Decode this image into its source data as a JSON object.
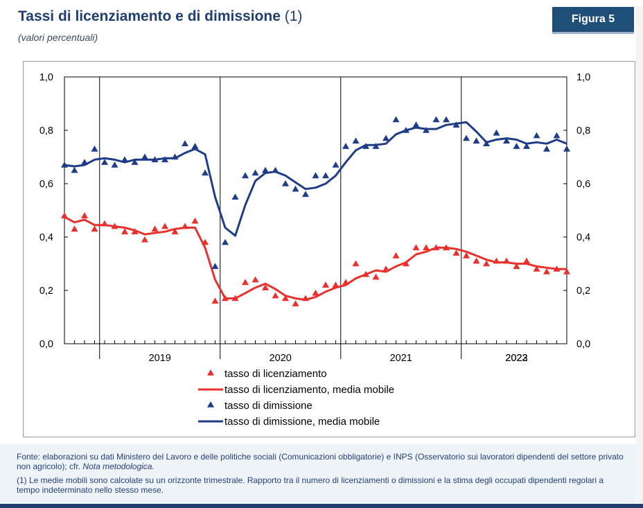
{
  "header": {
    "title": "Tassi di licenziamento e di dimissione",
    "title_note": "(1)",
    "subtitle": "(valori percentuali)",
    "figure_label": "Figura 5"
  },
  "colors": {
    "red": "#e8302d",
    "blue": "#1f3c88",
    "title": "#1f3f73"
  },
  "footer": {
    "source": "Fonte: elaborazioni su dati Ministero del Lavoro e delle politiche sociali (Comunicazioni obbligatorie) e INPS (Osservatorio sui lavoratori dipendenti del settore privato non agricolo); cfr.",
    "source_link": "Nota metodologica.",
    "note": "(1)  Le medie mobili sono calcolate su un orizzonte trimestrale. Rapporto tra il numero di licenziamenti o dimissioni e la stima degli occupati dipendenti regolari a tempo indeterminato nello stesso mese."
  },
  "chart_data": {
    "type": "line",
    "y_ticks": [
      "0,0",
      "0,2",
      "0,4",
      "0,6",
      "0,8",
      "1,0"
    ],
    "ylim": [
      0,
      1
    ],
    "year_labels": [
      "2019",
      "2020",
      "2021",
      "2022",
      "2023"
    ],
    "x_start": "2018-09",
    "months": 51,
    "grid": "vertical year separators",
    "legend_placement": "bottom",
    "series": [
      {
        "name": "tasso di licenziamento",
        "kind": "markers",
        "color": "#e8302d",
        "values": [
          0.48,
          0.43,
          0.48,
          0.43,
          0.45,
          0.44,
          0.42,
          0.42,
          0.39,
          0.43,
          0.44,
          0.42,
          0.44,
          0.46,
          0.38,
          0.16,
          0.17,
          0.17,
          0.23,
          0.24,
          0.21,
          0.18,
          0.17,
          0.15,
          0.17,
          0.19,
          0.22,
          0.22,
          0.23,
          0.3,
          0.26,
          0.25,
          0.28,
          0.33,
          0.3,
          0.36,
          0.36,
          0.36,
          0.36,
          0.34,
          0.33,
          0.31,
          0.3,
          0.31,
          0.31,
          0.29,
          0.31,
          0.28,
          0.27,
          0.28,
          0.27
        ]
      },
      {
        "name": "tasso di licenziamento, media mobile",
        "kind": "line",
        "color": "#e8302d",
        "values": [
          0.475,
          0.455,
          0.465,
          0.445,
          0.445,
          0.44,
          0.435,
          0.425,
          0.41,
          0.415,
          0.42,
          0.43,
          0.435,
          0.435,
          0.36,
          0.24,
          0.17,
          0.17,
          0.19,
          0.21,
          0.225,
          0.205,
          0.18,
          0.17,
          0.165,
          0.175,
          0.195,
          0.21,
          0.22,
          0.245,
          0.26,
          0.275,
          0.27,
          0.29,
          0.305,
          0.335,
          0.345,
          0.36,
          0.36,
          0.355,
          0.345,
          0.33,
          0.315,
          0.305,
          0.305,
          0.3,
          0.3,
          0.29,
          0.285,
          0.28,
          0.28
        ]
      },
      {
        "name": "tasso di dimissione",
        "kind": "markers",
        "color": "#1f3c88",
        "values": [
          0.67,
          0.65,
          0.68,
          0.73,
          0.68,
          0.67,
          0.69,
          0.68,
          0.7,
          0.69,
          0.69,
          0.7,
          0.75,
          0.74,
          0.64,
          0.29,
          0.38,
          0.55,
          0.63,
          0.64,
          0.65,
          0.65,
          0.6,
          0.58,
          0.56,
          0.63,
          0.63,
          0.67,
          0.74,
          0.76,
          0.74,
          0.74,
          0.77,
          0.84,
          0.8,
          0.82,
          0.8,
          0.84,
          0.84,
          0.82,
          0.77,
          0.76,
          0.75,
          0.79,
          0.76,
          0.74,
          0.74,
          0.78,
          0.73,
          0.78,
          0.73
        ]
      },
      {
        "name": "tasso di dimissione, media mobile",
        "kind": "line",
        "color": "#1f3c88",
        "values": [
          0.67,
          0.665,
          0.67,
          0.69,
          0.695,
          0.69,
          0.68,
          0.69,
          0.69,
          0.69,
          0.695,
          0.695,
          0.715,
          0.73,
          0.71,
          0.55,
          0.435,
          0.405,
          0.52,
          0.61,
          0.64,
          0.645,
          0.63,
          0.605,
          0.58,
          0.585,
          0.6,
          0.63,
          0.68,
          0.725,
          0.745,
          0.745,
          0.75,
          0.785,
          0.8,
          0.81,
          0.805,
          0.805,
          0.82,
          0.825,
          0.83,
          0.795,
          0.755,
          0.765,
          0.77,
          0.765,
          0.75,
          0.755,
          0.75,
          0.765,
          0.75
        ]
      }
    ]
  }
}
